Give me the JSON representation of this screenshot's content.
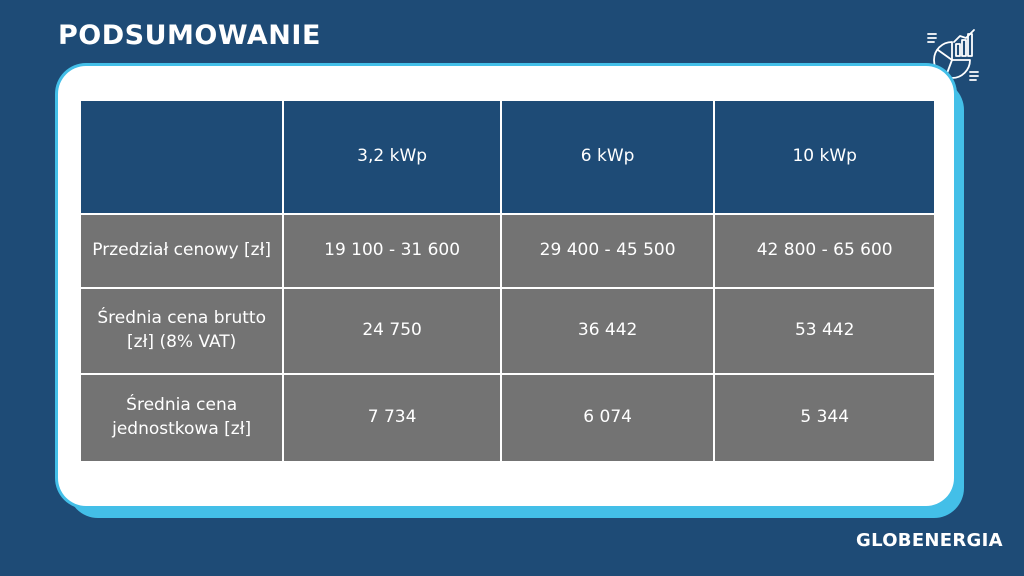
{
  "header": {
    "title": "PODSUMOWANIE",
    "icon": "chart-report-icon"
  },
  "table": {
    "columns": [
      "",
      "3,2 kWp",
      "6 kWp",
      "10 kWp"
    ],
    "rows": [
      {
        "label": "Przedział cenowy [zł]",
        "values": [
          "19 100 - 31 600",
          "29 400 - 45 500",
          "42 800 - 65 600"
        ]
      },
      {
        "label": "Średnia cena brutto [zł] (8% VAT)",
        "values": [
          "24 750",
          "36 442",
          "53 442"
        ]
      },
      {
        "label": "Średnia cena jednostkowa [zł]",
        "values": [
          "7 734",
          "6 074",
          "5 344"
        ]
      }
    ]
  },
  "footer": {
    "brand": "GLOBENERGIA"
  },
  "colors": {
    "background": "#1e4b76",
    "card_border": "#43bfe8",
    "cell_gray": "#737373"
  }
}
